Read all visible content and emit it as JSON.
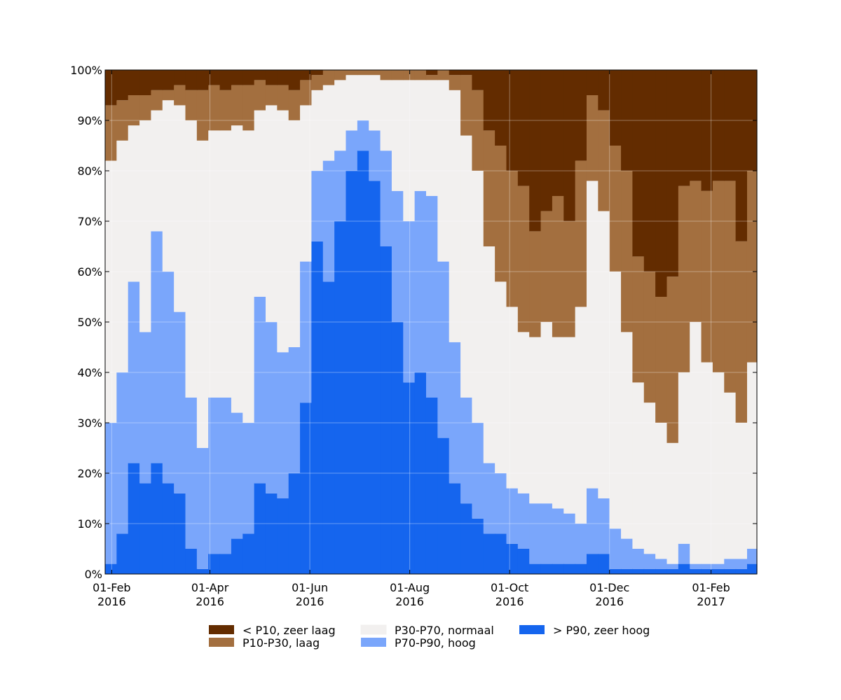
{
  "chart_data": {
    "type": "stacked_area_step",
    "x": [
      "2016-01-28",
      "2016-02-04",
      "2016-02-11",
      "2016-02-18",
      "2016-02-25",
      "2016-03-03",
      "2016-03-10",
      "2016-03-17",
      "2016-03-24",
      "2016-03-31",
      "2016-04-07",
      "2016-04-14",
      "2016-04-21",
      "2016-04-28",
      "2016-05-05",
      "2016-05-12",
      "2016-05-19",
      "2016-05-26",
      "2016-06-02",
      "2016-06-09",
      "2016-06-16",
      "2016-06-23",
      "2016-06-30",
      "2016-07-07",
      "2016-07-14",
      "2016-07-21",
      "2016-07-28",
      "2016-08-04",
      "2016-08-11",
      "2016-08-18",
      "2016-08-25",
      "2016-09-01",
      "2016-09-08",
      "2016-09-15",
      "2016-09-22",
      "2016-09-29",
      "2016-10-06",
      "2016-10-13",
      "2016-10-20",
      "2016-10-27",
      "2016-11-03",
      "2016-11-10",
      "2016-11-17",
      "2016-11-24",
      "2016-12-01",
      "2016-12-08",
      "2016-12-15",
      "2016-12-22",
      "2016-12-29",
      "2017-01-05",
      "2017-01-12",
      "2017-01-19",
      "2017-01-26",
      "2017-02-02",
      "2017-02-09",
      "2017-02-16",
      "2017-02-23"
    ],
    "series": [
      {
        "name": "< P10, zeer laag",
        "color": "#632c00",
        "values": [
          7,
          6,
          5,
          5,
          4,
          4,
          3,
          4,
          4,
          3,
          4,
          3,
          3,
          2,
          3,
          3,
          4,
          2,
          1,
          0,
          0,
          0,
          0,
          0,
          0,
          0,
          0,
          0,
          1,
          0,
          1,
          1,
          4,
          12,
          15,
          20,
          23,
          32,
          28,
          25,
          30,
          18,
          5,
          8,
          15,
          20,
          37,
          40,
          45,
          41,
          23,
          22,
          24,
          22,
          22,
          34,
          20
        ]
      },
      {
        "name": "P10-P30, laag",
        "color": "#a36f3f",
        "values": [
          11,
          8,
          6,
          5,
          4,
          2,
          4,
          6,
          10,
          9,
          8,
          8,
          9,
          6,
          4,
          5,
          6,
          5,
          3,
          3,
          2,
          1,
          1,
          1,
          2,
          2,
          2,
          2,
          1,
          2,
          3,
          12,
          16,
          23,
          27,
          27,
          29,
          21,
          22,
          28,
          23,
          29,
          17,
          20,
          25,
          32,
          25,
          26,
          25,
          33,
          37,
          28,
          34,
          38,
          42,
          36,
          38
        ]
      },
      {
        "name": "P30-P70, normaal",
        "color": "#f2f0ef",
        "values": [
          52,
          46,
          31,
          42,
          24,
          34,
          41,
          55,
          61,
          53,
          53,
          57,
          58,
          37,
          43,
          48,
          45,
          31,
          16,
          15,
          14,
          11,
          9,
          11,
          14,
          22,
          28,
          22,
          23,
          36,
          50,
          52,
          50,
          43,
          38,
          36,
          32,
          33,
          36,
          34,
          35,
          43,
          61,
          57,
          51,
          41,
          33,
          30,
          27,
          24,
          34,
          48,
          40,
          38,
          33,
          27,
          37
        ]
      },
      {
        "name": "P70-P90, hoog",
        "color": "#7aa6fb",
        "values": [
          28,
          32,
          36,
          30,
          46,
          42,
          36,
          30,
          24,
          31,
          31,
          25,
          22,
          37,
          34,
          29,
          25,
          28,
          14,
          24,
          14,
          8,
          6,
          10,
          19,
          26,
          32,
          36,
          40,
          35,
          28,
          21,
          19,
          14,
          12,
          11,
          11,
          12,
          12,
          11,
          10,
          8,
          13,
          11,
          8,
          6,
          4,
          3,
          2,
          1,
          4,
          1,
          1,
          1,
          2,
          2,
          3
        ]
      },
      {
        "name": "> P90, zeer hoog",
        "color": "#1565ee",
        "values": [
          2,
          8,
          22,
          18,
          22,
          18,
          16,
          5,
          1,
          4,
          4,
          7,
          8,
          18,
          16,
          15,
          20,
          34,
          66,
          58,
          70,
          80,
          84,
          78,
          65,
          50,
          38,
          40,
          35,
          27,
          18,
          14,
          11,
          8,
          8,
          6,
          5,
          2,
          2,
          2,
          2,
          2,
          4,
          4,
          1,
          1,
          1,
          1,
          1,
          1,
          2,
          1,
          1,
          1,
          1,
          1,
          2
        ]
      }
    ],
    "xlim": [
      "2016-01-28",
      "2017-03-01"
    ],
    "xticks": [
      {
        "value": "2016-02-01",
        "label": "01-Feb 2016"
      },
      {
        "value": "2016-04-01",
        "label": "01-Apr 2016"
      },
      {
        "value": "2016-06-01",
        "label": "01-Jun 2016"
      },
      {
        "value": "2016-08-01",
        "label": "01-Aug 2016"
      },
      {
        "value": "2016-10-01",
        "label": "01-Oct 2016"
      },
      {
        "value": "2016-12-01",
        "label": "01-Dec 2016"
      },
      {
        "value": "2017-02-01",
        "label": "01-Feb 2017"
      }
    ],
    "ylim": [
      0,
      100
    ],
    "yticks": [
      {
        "value": 0,
        "label": "0%"
      },
      {
        "value": 10,
        "label": "10%"
      },
      {
        "value": 20,
        "label": "20%"
      },
      {
        "value": 30,
        "label": "30%"
      },
      {
        "value": 40,
        "label": "40%"
      },
      {
        "value": 50,
        "label": "50%"
      },
      {
        "value": 60,
        "label": "60%"
      },
      {
        "value": 70,
        "label": "70%"
      },
      {
        "value": 80,
        "label": "80%"
      },
      {
        "value": 90,
        "label": "90%"
      },
      {
        "value": 100,
        "label": "100%"
      }
    ],
    "grid": true,
    "legend": "bottom"
  }
}
